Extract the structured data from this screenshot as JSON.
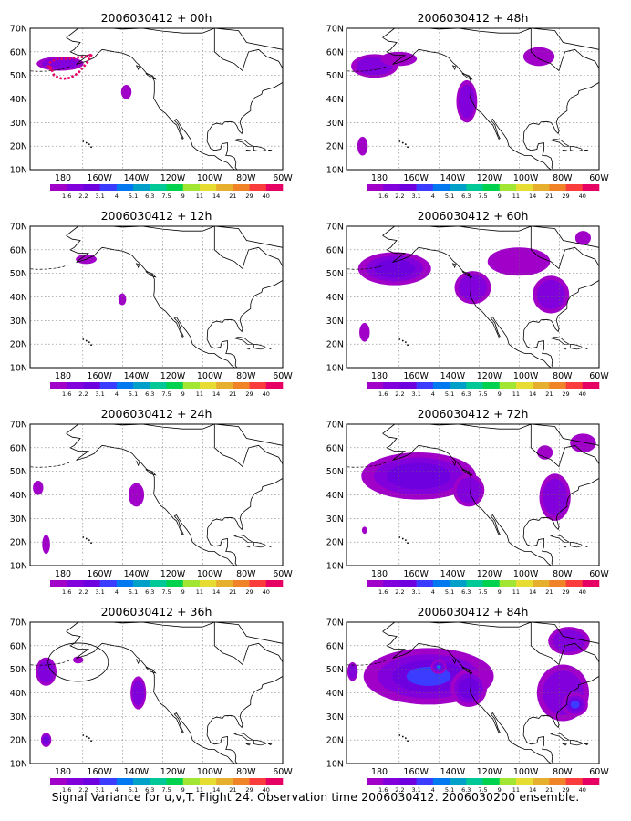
{
  "footer": "Signal Variance for u,v,T. Flight 24. Observation time 2006030412. 2006030200 ensemble.",
  "lat_labels": [
    "10N",
    "20N",
    "30N",
    "40N",
    "50N",
    "60N",
    "70N"
  ],
  "lon_labels": [
    "180",
    "160W",
    "140W",
    "120W",
    "100W",
    "80W",
    "60W"
  ],
  "colorbar": {
    "labels": [
      "1.6",
      "2.2",
      "3.1",
      "4",
      "5.1",
      "6.3",
      "7.5",
      "9",
      "11",
      "14",
      "21",
      "29",
      "40"
    ],
    "colors": [
      "#a000c8",
      "#8200dc",
      "#6e00e0",
      "#3c3cff",
      "#0078f0",
      "#00a0c8",
      "#00c896",
      "#00d250",
      "#a0e632",
      "#e6dc32",
      "#e6af2d",
      "#f08228",
      "#fa3c3c",
      "#e60064"
    ]
  },
  "palette": {
    "shade_light": "#a000c8",
    "shade_mid": "#8200dc",
    "shade_dark": "#6e00e0",
    "shade_blue": "#3c3cff",
    "shade_cyan": "#00a0c8",
    "flight_track": "#e60064"
  },
  "panels": [
    {
      "id": "p00",
      "title": "2006030412 + 00h",
      "col": 0,
      "row": 0,
      "blobs": [
        {
          "lon": -171,
          "lat": 55,
          "rl": 9,
          "rt": 3,
          "level": 1
        },
        {
          "lon": -138,
          "lat": 43,
          "rl": 2,
          "rt": 3,
          "level": 0
        }
      ],
      "track": "arc",
      "ellipse": false
    },
    {
      "id": "p12",
      "title": "2006030412 + 12h",
      "col": 0,
      "row": 1,
      "blobs": [
        {
          "lon": -158,
          "lat": 56,
          "rl": 4,
          "rt": 2,
          "level": 0
        },
        {
          "lon": -140,
          "lat": 39,
          "rl": 1.5,
          "rt": 2.5,
          "level": 0
        }
      ],
      "track": "none",
      "ellipse": false
    },
    {
      "id": "p24",
      "title": "2006030412 + 24h",
      "col": 0,
      "row": 2,
      "blobs": [
        {
          "lon": -182,
          "lat": 43,
          "rl": 2,
          "rt": 3,
          "level": 0
        },
        {
          "lon": -178,
          "lat": 19,
          "rl": 1.5,
          "rt": 4,
          "level": 0
        },
        {
          "lon": -133,
          "lat": 40,
          "rl": 3,
          "rt": 5,
          "level": 0
        }
      ],
      "track": "none",
      "ellipse": false
    },
    {
      "id": "p36",
      "title": "2006030412 + 36h",
      "col": 0,
      "row": 3,
      "blobs": [
        {
          "lon": -178,
          "lat": 49,
          "rl": 4,
          "rt": 6,
          "level": 1
        },
        {
          "lon": -178,
          "lat": 20,
          "rl": 2,
          "rt": 3,
          "level": 2
        },
        {
          "lon": -132,
          "lat": 40,
          "rl": 3,
          "rt": 7,
          "level": 1
        },
        {
          "lon": -162,
          "lat": 54,
          "rl": 2,
          "rt": 1.5,
          "level": 0
        }
      ],
      "track": "none",
      "ellipse": true
    },
    {
      "id": "p48",
      "title": "2006030412 + 48h",
      "col": 1,
      "row": 0,
      "blobs": [
        {
          "lon": -172,
          "lat": 54,
          "rl": 9,
          "rt": 5,
          "level": 1
        },
        {
          "lon": -160,
          "lat": 57,
          "rl": 7,
          "rt": 3,
          "level": 0
        },
        {
          "lon": -126,
          "lat": 39,
          "rl": 4,
          "rt": 9,
          "level": 1
        },
        {
          "lon": -178,
          "lat": 20,
          "rl": 2,
          "rt": 4,
          "level": 0
        },
        {
          "lon": -90,
          "lat": 58,
          "rl": 6,
          "rt": 4,
          "level": 0
        }
      ],
      "track": "none",
      "ellipse": false
    },
    {
      "id": "p60",
      "title": "2006030412 + 60h",
      "col": 1,
      "row": 1,
      "blobs": [
        {
          "lon": -162,
          "lat": 52,
          "rl": 14,
          "rt": 7,
          "level": 2
        },
        {
          "lon": -123,
          "lat": 44,
          "rl": 7,
          "rt": 7,
          "level": 1
        },
        {
          "lon": -100,
          "lat": 55,
          "rl": 12,
          "rt": 6,
          "level": 0
        },
        {
          "lon": -84,
          "lat": 41,
          "rl": 7,
          "rt": 8,
          "level": 1
        },
        {
          "lon": -177,
          "lat": 25,
          "rl": 2,
          "rt": 4,
          "level": 0
        },
        {
          "lon": -68,
          "lat": 65,
          "rl": 3,
          "rt": 3,
          "level": 0
        }
      ],
      "track": "none",
      "ellipse": false
    },
    {
      "id": "p72",
      "title": "2006030412 + 72h",
      "col": 1,
      "row": 2,
      "blobs": [
        {
          "lon": -150,
          "lat": 48,
          "rl": 22,
          "rt": 10,
          "level": 2
        },
        {
          "lon": -125,
          "lat": 42,
          "rl": 6,
          "rt": 7,
          "level": 1
        },
        {
          "lon": -87,
          "lat": 58,
          "rl": 3,
          "rt": 3,
          "level": 0
        },
        {
          "lon": -82,
          "lat": 39,
          "rl": 6,
          "rt": 10,
          "level": 1
        },
        {
          "lon": -68,
          "lat": 62,
          "rl": 5,
          "rt": 4,
          "level": 0
        },
        {
          "lon": -177,
          "lat": 25,
          "rl": 1,
          "rt": 1.5,
          "level": 0
        }
      ],
      "track": "none",
      "ellipse": false
    },
    {
      "id": "p84",
      "title": "2006030412 + 84h",
      "col": 1,
      "row": 3,
      "blobs": [
        {
          "lon": -145,
          "lat": 47,
          "rl": 25,
          "rt": 12,
          "level": 3
        },
        {
          "lon": -140,
          "lat": 51,
          "rl": 3,
          "rt": 3,
          "level": 4
        },
        {
          "lon": -125,
          "lat": 42,
          "rl": 7,
          "rt": 8,
          "level": 2
        },
        {
          "lon": -78,
          "lat": 40,
          "rl": 10,
          "rt": 12,
          "level": 1
        },
        {
          "lon": -72,
          "lat": 35,
          "rl": 5,
          "rt": 5,
          "level": 3
        },
        {
          "lon": -75,
          "lat": 62,
          "rl": 8,
          "rt": 6,
          "level": 1
        },
        {
          "lon": -183,
          "lat": 49,
          "rl": 2,
          "rt": 4,
          "level": 1
        }
      ],
      "track": "none",
      "ellipse": false
    }
  ]
}
